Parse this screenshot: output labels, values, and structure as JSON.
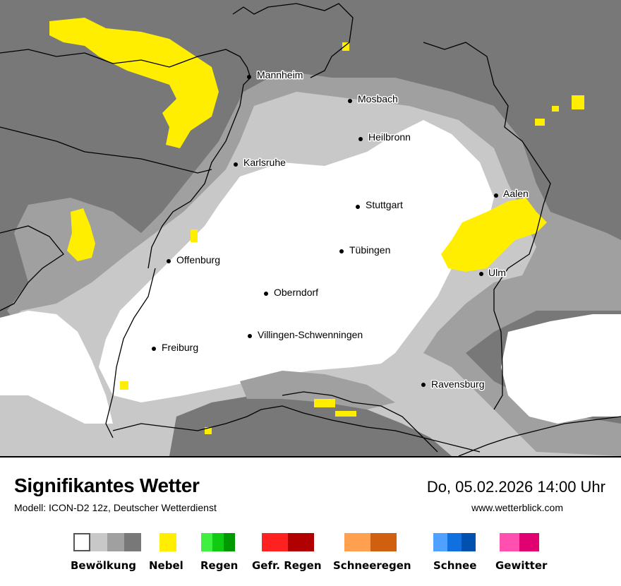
{
  "map": {
    "cities": [
      {
        "name": "Mannheim"
      },
      {
        "name": "Mosbach"
      },
      {
        "name": "Heilbronn"
      },
      {
        "name": "Karlsruhe"
      },
      {
        "name": "Aalen"
      },
      {
        "name": "Stuttgart"
      },
      {
        "name": "Tübingen"
      },
      {
        "name": "Offenburg"
      },
      {
        "name": "Ulm"
      },
      {
        "name": "Oberndorf"
      },
      {
        "name": "Villingen-Schwenningen"
      },
      {
        "name": "Freiburg"
      },
      {
        "name": "Ravensburg"
      }
    ],
    "colors": {
      "clear": "#ffffff",
      "cloud_light": "#c8c8c8",
      "cloud_medium": "#a0a0a0",
      "cloud_dark": "#787878",
      "fog": "#ffff00",
      "border": "#000000"
    }
  },
  "footer": {
    "title": "Signifikantes Wetter",
    "model": "Modell: ICON-D2 12z, Deutscher Wetterdienst",
    "datetime": "Do, 05.02.2026 14:00 Uhr",
    "url": "www.wetterblick.com"
  },
  "legend": [
    {
      "label": "Bewölkung",
      "colors": [
        "#ffffff",
        "#c8c8c8",
        "#a0a0a0",
        "#787878"
      ]
    },
    {
      "label": "Nebel",
      "colors": [
        "#ffee00"
      ]
    },
    {
      "label": "Regen",
      "colors": [
        "#40f040",
        "#10cc10",
        "#009900"
      ]
    },
    {
      "label": "Gefr. Regen",
      "colors": [
        "#ff2020",
        "#b00000"
      ]
    },
    {
      "label": "Schneeregen",
      "colors": [
        "#ffa050",
        "#d06010"
      ]
    },
    {
      "label": "Schnee",
      "colors": [
        "#50a0ff",
        "#1070e0",
        "#0050b0"
      ]
    },
    {
      "label": "Gewitter",
      "colors": [
        "#ff50b0",
        "#e00070"
      ]
    }
  ]
}
